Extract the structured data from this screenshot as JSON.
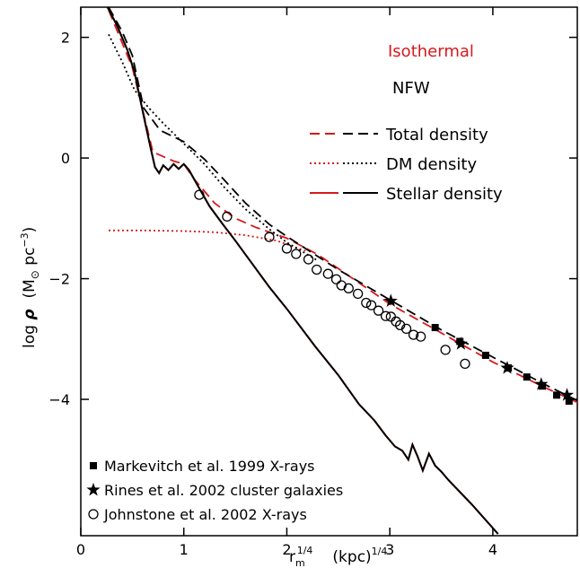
{
  "chart_data": {
    "type": "line",
    "xlabel": [
      "r",
      "m",
      "1/4",
      "(kpc)",
      "1/4"
    ],
    "ylabel": [
      "log ",
      "ρ",
      "(M",
      "⊙",
      " pc",
      "−3",
      ")"
    ],
    "xlim": [
      0,
      4.82
    ],
    "ylim": [
      -6.26,
      2.5
    ],
    "xticks": [
      0,
      1,
      2,
      3,
      4
    ],
    "yticks": [
      {
        "value": -4,
        "label": "−4"
      },
      {
        "value": -2,
        "label": "−2"
      },
      0,
      2
    ],
    "series": [
      {
        "name": "Total density",
        "model": "Isothermal",
        "color": "#d7191c",
        "dash": "dashed",
        "x": [
          0.27,
          0.5,
          0.7,
          0.9,
          1.0,
          1.1,
          1.3,
          1.5,
          1.7,
          2.0,
          2.3,
          2.6,
          3.0,
          3.5,
          4.0,
          4.5,
          4.82
        ],
        "values": [
          2.45,
          1.5,
          0.1,
          -0.05,
          -0.1,
          -0.35,
          -0.75,
          -1.0,
          -1.15,
          -1.33,
          -1.6,
          -1.95,
          -2.42,
          -2.9,
          -3.38,
          -3.8,
          -4.05
        ]
      },
      {
        "name": "Total density",
        "model": "NFW",
        "color": "#000000",
        "dash": "dashed",
        "x": [
          0.27,
          0.4,
          0.5,
          0.61,
          0.77,
          1.0,
          1.2,
          1.39,
          1.6,
          1.83,
          2.0,
          2.5,
          3.0,
          3.5,
          4.0,
          4.5,
          4.82
        ],
        "values": [
          2.5,
          2.1,
          1.7,
          0.83,
          0.46,
          0.27,
          -0.02,
          -0.36,
          -0.75,
          -1.1,
          -1.3,
          -1.85,
          -2.35,
          -2.85,
          -3.3,
          -3.75,
          -4.02
        ]
      },
      {
        "name": "DM density",
        "model": "Isothermal",
        "color": "#d7191c",
        "dash": "dotted",
        "x": [
          0.27,
          0.6,
          1.0,
          1.3,
          1.6,
          1.9,
          2.2
        ],
        "values": [
          -1.2,
          -1.2,
          -1.21,
          -1.23,
          -1.28,
          -1.37,
          -1.55
        ]
      },
      {
        "name": "DM density",
        "model": "NFW",
        "color": "#000000",
        "dash": "dotted",
        "x": [
          0.27,
          0.4,
          0.52,
          0.65,
          0.78,
          1.0,
          1.2,
          1.39,
          1.6,
          1.83,
          2.0,
          2.3
        ],
        "values": [
          2.05,
          1.6,
          1.13,
          0.85,
          0.61,
          0.24,
          -0.1,
          -0.48,
          -0.85,
          -1.18,
          -1.4,
          -1.7
        ]
      },
      {
        "name": "Stellar density",
        "model": "Isothermal",
        "color": "#d7191c",
        "dash": "solid",
        "x": [
          0.26,
          0.35,
          0.45,
          0.52,
          0.61,
          0.68,
          0.72,
          0.76,
          0.8,
          0.85,
          0.9,
          0.95,
          1.0,
          1.05,
          1.15,
          1.25,
          1.38,
          1.5,
          1.65,
          1.83,
          2.0,
          2.27,
          2.5,
          2.7,
          2.85,
          2.96,
          3.05,
          3.12,
          3.18,
          3.22,
          3.27,
          3.32,
          3.38,
          3.44,
          3.5,
          3.57,
          3.8,
          4.05
        ],
        "values": [
          2.5,
          2.2,
          1.8,
          1.43,
          0.7,
          0.15,
          -0.15,
          -0.25,
          -0.12,
          -0.2,
          -0.1,
          -0.18,
          -0.1,
          -0.2,
          -0.5,
          -0.8,
          -1.1,
          -1.37,
          -1.72,
          -2.14,
          -2.5,
          -3.11,
          -3.6,
          -4.08,
          -4.35,
          -4.6,
          -4.78,
          -4.85,
          -5.0,
          -4.75,
          -4.95,
          -5.18,
          -4.9,
          -5.1,
          -5.2,
          -5.34,
          -5.75,
          -6.23
        ]
      },
      {
        "name": "Stellar density",
        "model": "NFW",
        "color": "#000000",
        "dash": "solid",
        "x": [
          0.26,
          0.35,
          0.45,
          0.52,
          0.61,
          0.68,
          0.72,
          0.76,
          0.8,
          0.85,
          0.9,
          0.95,
          1.0,
          1.05,
          1.15,
          1.25,
          1.38,
          1.5,
          1.65,
          1.83,
          2.0,
          2.27,
          2.5,
          2.7,
          2.85,
          2.96,
          3.05,
          3.12,
          3.18,
          3.22,
          3.27,
          3.32,
          3.38,
          3.44,
          3.5,
          3.57,
          3.8,
          4.05
        ],
        "values": [
          2.5,
          2.2,
          1.8,
          1.43,
          0.7,
          0.15,
          -0.15,
          -0.25,
          -0.12,
          -0.2,
          -0.1,
          -0.18,
          -0.1,
          -0.2,
          -0.5,
          -0.8,
          -1.1,
          -1.37,
          -1.72,
          -2.14,
          -2.5,
          -3.11,
          -3.6,
          -4.08,
          -4.35,
          -4.6,
          -4.78,
          -4.85,
          -5.0,
          -4.75,
          -4.95,
          -5.18,
          -4.9,
          -5.1,
          -5.2,
          -5.34,
          -5.75,
          -6.23
        ]
      }
    ],
    "points": [
      {
        "name": "Markevitch et al. 1999 X-rays",
        "marker": "square",
        "color": "#000000",
        "x": [
          3.44,
          3.68,
          3.93,
          4.15,
          4.33,
          4.48,
          4.62,
          4.74
        ],
        "values": [
          -2.81,
          -3.04,
          -3.27,
          -3.48,
          -3.63,
          -3.78,
          -3.93,
          -4.03
        ]
      },
      {
        "name": "Rines et al. 2002 cluster galaxies",
        "marker": "star",
        "color": "#000000",
        "x": [
          3.01,
          3.69,
          4.14,
          4.47,
          4.72
        ],
        "values": [
          -2.37,
          -3.08,
          -3.48,
          -3.75,
          -3.93
        ]
      },
      {
        "name": "Johnstone et al. 2002 X-rays",
        "marker": "circle",
        "color": "#000000",
        "x": [
          1.15,
          1.42,
          1.83,
          2.0,
          2.09,
          2.21,
          2.29,
          2.4,
          2.48,
          2.53,
          2.6,
          2.69,
          2.77,
          2.82,
          2.89,
          2.96,
          3.01,
          3.06,
          3.1,
          3.16,
          3.23,
          3.3,
          3.54,
          3.73
        ],
        "values": [
          -0.61,
          -0.97,
          -1.31,
          -1.5,
          -1.59,
          -1.68,
          -1.85,
          -1.92,
          -2.01,
          -2.11,
          -2.16,
          -2.25,
          -2.4,
          -2.44,
          -2.53,
          -2.62,
          -2.63,
          -2.71,
          -2.77,
          -2.83,
          -2.93,
          -2.96,
          -3.18,
          -3.41
        ]
      }
    ]
  }
}
